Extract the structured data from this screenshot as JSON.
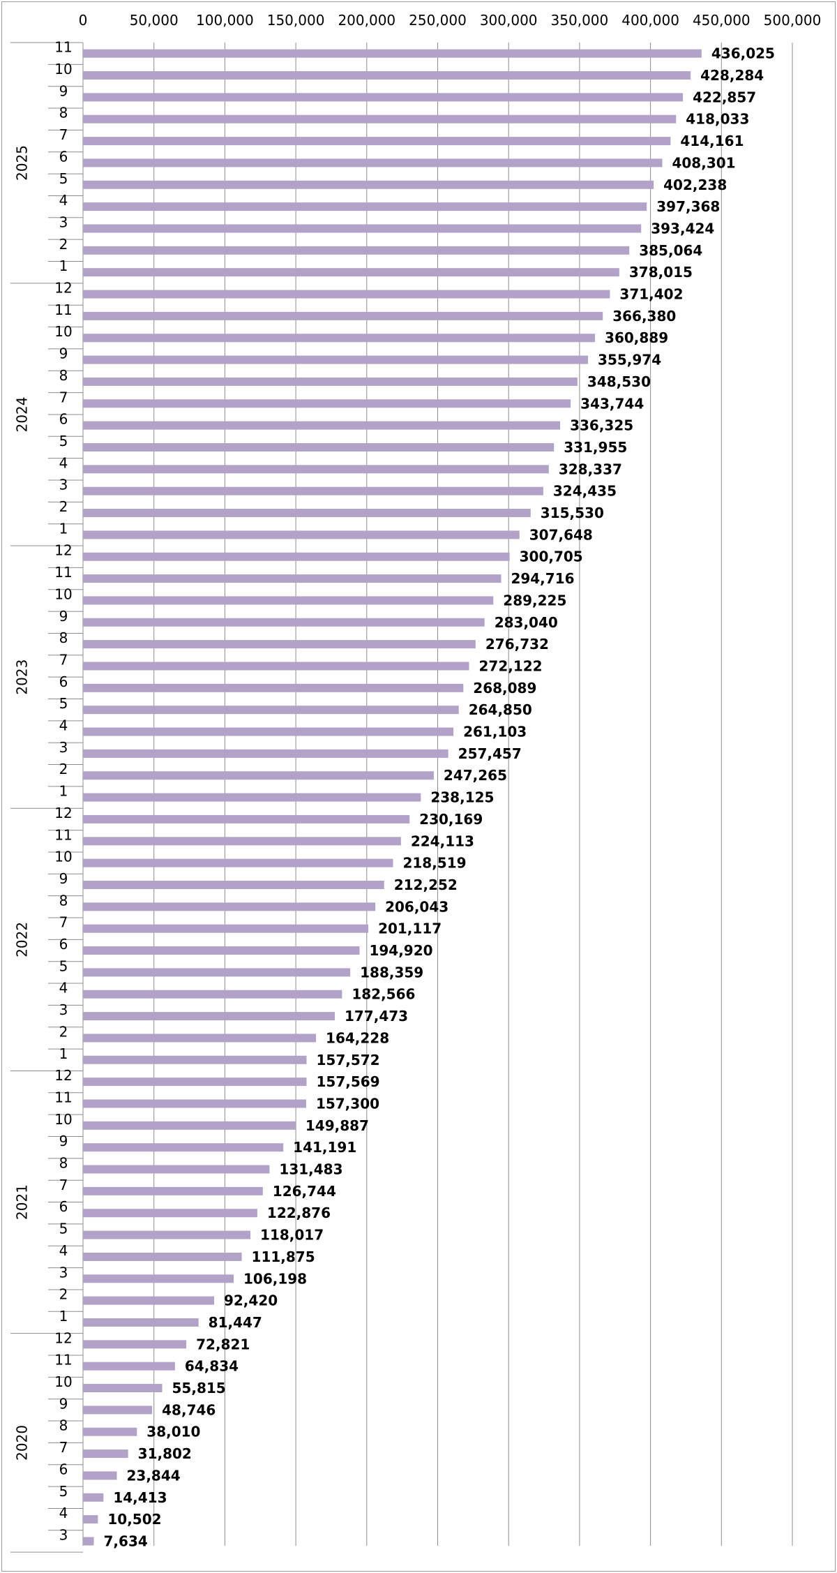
{
  "chart_data": {
    "type": "bar",
    "orientation": "horizontal",
    "title": "",
    "xlabel": "",
    "ylabel": "",
    "xlim": [
      0,
      500000
    ],
    "x_ticks": [
      "0",
      "50,000",
      "100,000",
      "150,000",
      "200,000",
      "250,000",
      "300,000",
      "350,000",
      "400,000",
      "450,000",
      "500,000"
    ],
    "x_tick_values": [
      0,
      50000,
      100000,
      150000,
      200000,
      250000,
      300000,
      350000,
      400000,
      450000,
      500000
    ],
    "x_axis_position": "top",
    "grid": "vertical",
    "legend": "none",
    "bar_color": "#b3a2c7",
    "groups": [
      {
        "year": "2025",
        "months": [
          {
            "month": "11",
            "value": 436025,
            "label": "436,025"
          },
          {
            "month": "10",
            "value": 428284,
            "label": "428,284"
          },
          {
            "month": "9",
            "value": 422857,
            "label": "422,857"
          },
          {
            "month": "8",
            "value": 418033,
            "label": "418,033"
          },
          {
            "month": "7",
            "value": 414161,
            "label": "414,161"
          },
          {
            "month": "6",
            "value": 408301,
            "label": "408,301"
          },
          {
            "month": "5",
            "value": 402238,
            "label": "402,238"
          },
          {
            "month": "4",
            "value": 397368,
            "label": "397,368"
          },
          {
            "month": "3",
            "value": 393424,
            "label": "393,424"
          },
          {
            "month": "2",
            "value": 385064,
            "label": "385,064"
          },
          {
            "month": "1",
            "value": 378015,
            "label": "378,015"
          }
        ]
      },
      {
        "year": "2024",
        "months": [
          {
            "month": "12",
            "value": 371402,
            "label": "371,402"
          },
          {
            "month": "11",
            "value": 366380,
            "label": "366,380"
          },
          {
            "month": "10",
            "value": 360889,
            "label": "360,889"
          },
          {
            "month": "9",
            "value": 355974,
            "label": "355,974"
          },
          {
            "month": "8",
            "value": 348530,
            "label": "348,530"
          },
          {
            "month": "7",
            "value": 343744,
            "label": "343,744"
          },
          {
            "month": "6",
            "value": 336325,
            "label": "336,325"
          },
          {
            "month": "5",
            "value": 331955,
            "label": "331,955"
          },
          {
            "month": "4",
            "value": 328337,
            "label": "328,337"
          },
          {
            "month": "3",
            "value": 324435,
            "label": "324,435"
          },
          {
            "month": "2",
            "value": 315530,
            "label": "315,530"
          },
          {
            "month": "1",
            "value": 307648,
            "label": "307,648"
          }
        ]
      },
      {
        "year": "2023",
        "months": [
          {
            "month": "12",
            "value": 300705,
            "label": "300,705"
          },
          {
            "month": "11",
            "value": 294716,
            "label": "294,716"
          },
          {
            "month": "10",
            "value": 289225,
            "label": "289,225"
          },
          {
            "month": "9",
            "value": 283040,
            "label": "283,040"
          },
          {
            "month": "8",
            "value": 276732,
            "label": "276,732"
          },
          {
            "month": "7",
            "value": 272122,
            "label": "272,122"
          },
          {
            "month": "6",
            "value": 268089,
            "label": "268,089"
          },
          {
            "month": "5",
            "value": 264850,
            "label": "264,850"
          },
          {
            "month": "4",
            "value": 261103,
            "label": "261,103"
          },
          {
            "month": "3",
            "value": 257457,
            "label": "257,457"
          },
          {
            "month": "2",
            "value": 247265,
            "label": "247,265"
          },
          {
            "month": "1",
            "value": 238125,
            "label": "238,125"
          }
        ]
      },
      {
        "year": "2022",
        "months": [
          {
            "month": "12",
            "value": 230169,
            "label": "230,169"
          },
          {
            "month": "11",
            "value": 224113,
            "label": "224,113"
          },
          {
            "month": "10",
            "value": 218519,
            "label": "218,519"
          },
          {
            "month": "9",
            "value": 212252,
            "label": "212,252"
          },
          {
            "month": "8",
            "value": 206043,
            "label": "206,043"
          },
          {
            "month": "7",
            "value": 201117,
            "label": "201,117"
          },
          {
            "month": "6",
            "value": 194920,
            "label": "194,920"
          },
          {
            "month": "5",
            "value": 188359,
            "label": "188,359"
          },
          {
            "month": "4",
            "value": 182566,
            "label": "182,566"
          },
          {
            "month": "3",
            "value": 177473,
            "label": "177,473"
          },
          {
            "month": "2",
            "value": 164228,
            "label": "164,228"
          },
          {
            "month": "1",
            "value": 157572,
            "label": "157,572"
          }
        ]
      },
      {
        "year": "2021",
        "months": [
          {
            "month": "12",
            "value": 157569,
            "label": "157,569"
          },
          {
            "month": "11",
            "value": 157300,
            "label": "157,300"
          },
          {
            "month": "10",
            "value": 149887,
            "label": "149,887"
          },
          {
            "month": "9",
            "value": 141191,
            "label": "141,191"
          },
          {
            "month": "8",
            "value": 131483,
            "label": "131,483"
          },
          {
            "month": "7",
            "value": 126744,
            "label": "126,744"
          },
          {
            "month": "6",
            "value": 122876,
            "label": "122,876"
          },
          {
            "month": "5",
            "value": 118017,
            "label": "118,017"
          },
          {
            "month": "4",
            "value": 111875,
            "label": "111,875"
          },
          {
            "month": "3",
            "value": 106198,
            "label": "106,198"
          },
          {
            "month": "2",
            "value": 92420,
            "label": "92,420"
          },
          {
            "month": "1",
            "value": 81447,
            "label": "81,447"
          }
        ]
      },
      {
        "year": "2020",
        "months": [
          {
            "month": "12",
            "value": 72821,
            "label": "72,821"
          },
          {
            "month": "11",
            "value": 64834,
            "label": "64,834"
          },
          {
            "month": "10",
            "value": 55815,
            "label": "55,815"
          },
          {
            "month": "9",
            "value": 48746,
            "label": "48,746"
          },
          {
            "month": "8",
            "value": 38010,
            "label": "38,010"
          },
          {
            "month": "7",
            "value": 31802,
            "label": "31,802"
          },
          {
            "month": "6",
            "value": 23844,
            "label": "23,844"
          },
          {
            "month": "5",
            "value": 14413,
            "label": "14,413"
          },
          {
            "month": "4",
            "value": 10502,
            "label": "10,502"
          },
          {
            "month": "3",
            "value": 7634,
            "label": "7,634"
          }
        ]
      }
    ]
  }
}
